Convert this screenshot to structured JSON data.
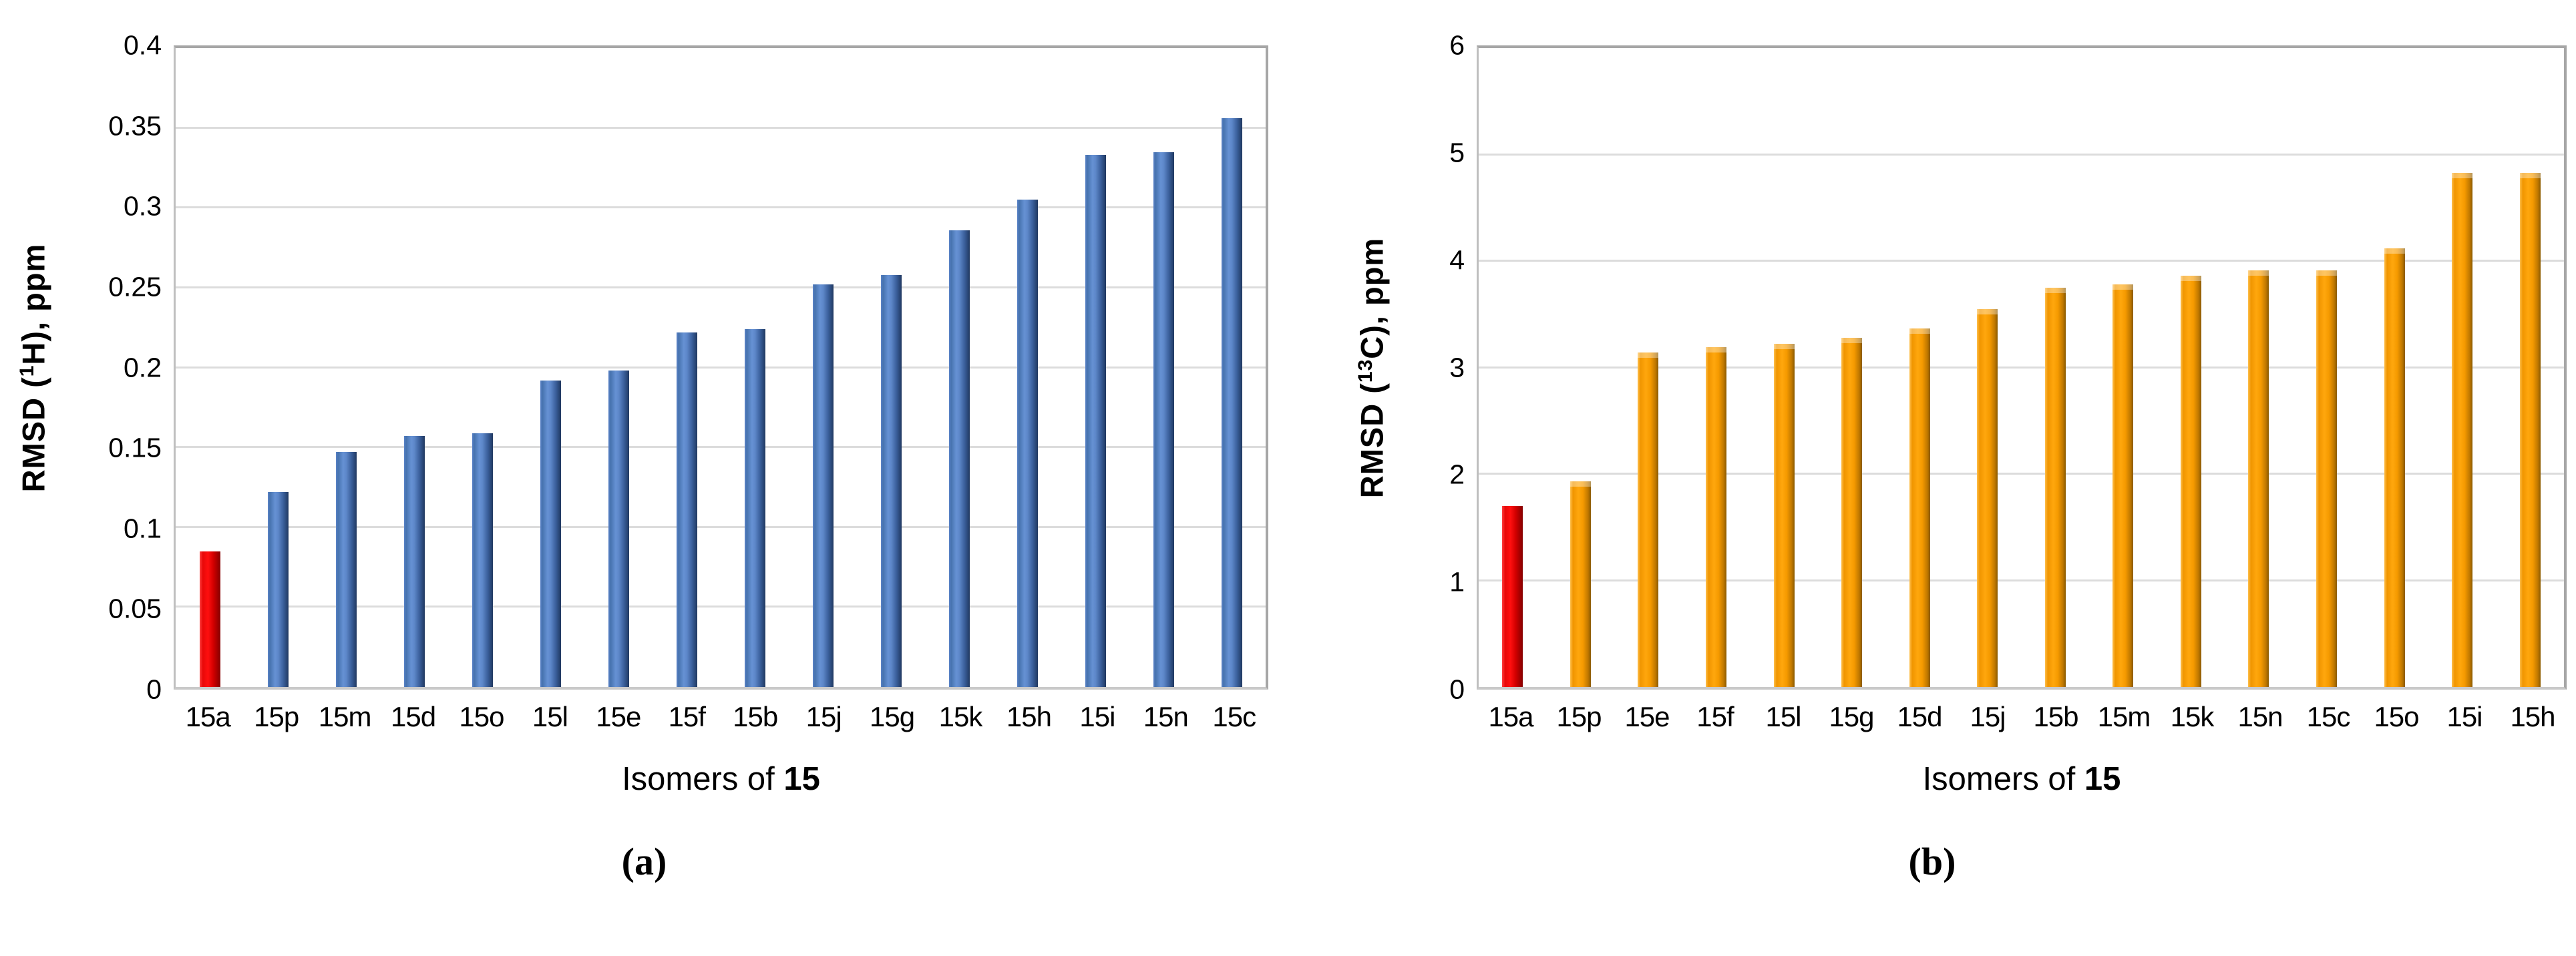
{
  "figure": {
    "captions": [
      "(a)",
      "(b)"
    ]
  },
  "colors": {
    "blue_series": "#4F81BD",
    "orange_series": "#FFA311",
    "highlight_red": "#FF0000",
    "gridline": "#DCDCDC",
    "axis_border": "#A6A6A6"
  },
  "chart_data": [
    {
      "type": "bar",
      "title": "",
      "ylabel_parts": {
        "pre": "RMSD (",
        "sup": "1",
        "post": "H), ppm"
      },
      "xlabel_parts": {
        "pre": "Isomers of ",
        "bold": "15"
      },
      "categories": [
        "15a",
        "15p",
        "15m",
        "15d",
        "15o",
        "15l",
        "15e",
        "15f",
        "15b",
        "15j",
        "15g",
        "15k",
        "15h",
        "15i",
        "15n",
        "15c"
      ],
      "values": [
        0.085,
        0.122,
        0.147,
        0.157,
        0.159,
        0.192,
        0.198,
        0.222,
        0.224,
        0.252,
        0.258,
        0.286,
        0.305,
        0.333,
        0.335,
        0.356
      ],
      "ylim": [
        0,
        0.4
      ],
      "ytick_labels": [
        "0",
        "0.05",
        "0.1",
        "0.15",
        "0.2",
        "0.25",
        "0.3",
        "0.35",
        "0.4"
      ],
      "grid": true,
      "legend": "none",
      "bar_style": "blue",
      "highlight_index": 0,
      "highlight_style": "red"
    },
    {
      "type": "bar",
      "title": "",
      "ylabel_parts": {
        "pre": "RMSD (",
        "sup": "13",
        "post": "C), ppm"
      },
      "xlabel_parts": {
        "pre": "Isomers of ",
        "bold": "15"
      },
      "categories": [
        "15a",
        "15p",
        "15e",
        "15f",
        "15l",
        "15g",
        "15d",
        "15j",
        "15b",
        "15m",
        "15k",
        "15n",
        "15c",
        "15o",
        "15i",
        "15h"
      ],
      "values": [
        1.7,
        1.93,
        3.14,
        3.19,
        3.22,
        3.28,
        3.37,
        3.55,
        3.75,
        3.78,
        3.86,
        3.91,
        3.91,
        4.12,
        4.83,
        4.83
      ],
      "ylim": [
        0,
        6
      ],
      "ytick_labels": [
        "0",
        "1",
        "2",
        "3",
        "4",
        "5",
        "6"
      ],
      "grid": true,
      "legend": "none",
      "bar_style": "orange",
      "highlight_index": 0,
      "highlight_style": "red"
    }
  ]
}
